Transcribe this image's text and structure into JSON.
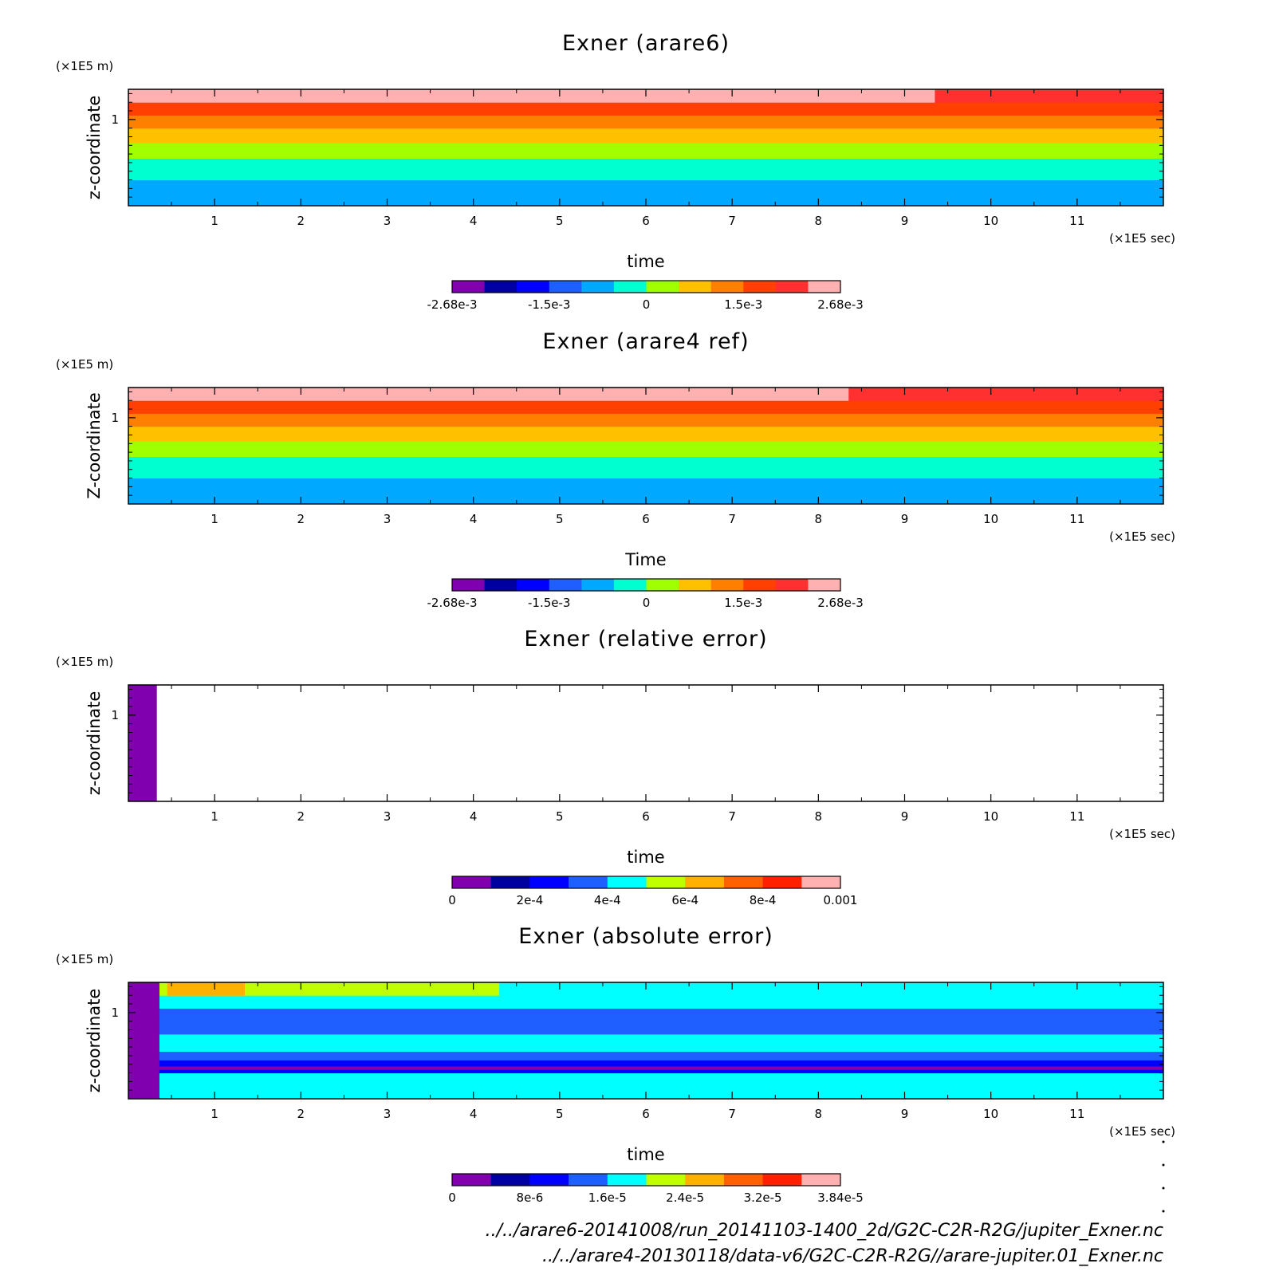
{
  "chart_data": [
    {
      "type": "heatmap",
      "title": "Exner (arare6)",
      "xlabel": "time",
      "ylabel": "z-coordinate",
      "x_unit": "(×1E5 sec)",
      "y_unit": "(×1E5 m)",
      "xlim": [
        0,
        12
      ],
      "ylim": [
        0,
        1.35
      ],
      "x_ticks": [
        "1",
        "2",
        "3",
        "4",
        "5",
        "6",
        "7",
        "8",
        "9",
        "10",
        "11"
      ],
      "y_ticks": [
        "1"
      ],
      "colorbar": {
        "levels": [
          -0.00268,
          0.00268
        ],
        "tick_labels": [
          "-2.68e-3",
          "-1.5e-3",
          "0",
          "1.5e-3",
          "2.68e-3"
        ],
        "colors": [
          "#8000b0",
          "#0000a0",
          "#0000ff",
          "#1f5fff",
          "#00a8ff",
          "#00ffd0",
          "#a0ff00",
          "#ffc000",
          "#ff8000",
          "#ff4000",
          "#ff3030",
          "#ffb0b0"
        ]
      },
      "field": {
        "layers": [
          {
            "z": [
              0.0,
              0.3
            ],
            "color": "#00a8ff"
          },
          {
            "z": [
              0.3,
              0.55
            ],
            "color": "#00ffd0"
          },
          {
            "z": [
              0.55,
              0.73
            ],
            "color": "#a0ff00"
          },
          {
            "z": [
              0.73,
              0.9
            ],
            "color": "#ffc000"
          },
          {
            "z": [
              0.9,
              1.05
            ],
            "color": "#ff8000"
          },
          {
            "z": [
              1.05,
              1.2
            ],
            "color": "#ff4000"
          },
          {
            "z": [
              1.2,
              1.35
            ],
            "color": "#ffb0b0",
            "switch_time": 9.35,
            "switch_color": "#ff3030"
          }
        ]
      }
    },
    {
      "type": "heatmap",
      "title": "Exner (arare4 ref)",
      "xlabel": "Time",
      "ylabel": "Z-coordinate",
      "x_unit": "(×1E5 sec)",
      "y_unit": "(×1E5 m)",
      "xlim": [
        0,
        12
      ],
      "ylim": [
        0,
        1.35
      ],
      "x_ticks": [
        "1",
        "2",
        "3",
        "4",
        "5",
        "6",
        "7",
        "8",
        "9",
        "10",
        "11"
      ],
      "y_ticks": [
        "1"
      ],
      "colorbar": {
        "levels": [
          -0.00268,
          0.00268
        ],
        "tick_labels": [
          "-2.68e-3",
          "-1.5e-3",
          "0",
          "1.5e-3",
          "2.68e-3"
        ],
        "colors": [
          "#8000b0",
          "#0000a0",
          "#0000ff",
          "#1f5fff",
          "#00a8ff",
          "#00ffd0",
          "#a0ff00",
          "#ffc000",
          "#ff8000",
          "#ff4000",
          "#ff3030",
          "#ffb0b0"
        ]
      },
      "field": {
        "layers": [
          {
            "z": [
              0.0,
              0.3
            ],
            "color": "#00a8ff"
          },
          {
            "z": [
              0.3,
              0.55
            ],
            "color": "#00ffd0"
          },
          {
            "z": [
              0.55,
              0.73
            ],
            "color": "#a0ff00"
          },
          {
            "z": [
              0.73,
              0.9
            ],
            "color": "#ffc000"
          },
          {
            "z": [
              0.9,
              1.05
            ],
            "color": "#ff8000"
          },
          {
            "z": [
              1.05,
              1.2
            ],
            "color": "#ff4000"
          },
          {
            "z": [
              1.2,
              1.35
            ],
            "color": "#ffb0b0",
            "switch_time": 8.35,
            "switch_color": "#ff3030"
          }
        ]
      }
    },
    {
      "type": "heatmap",
      "title": "Exner (relative error)",
      "xlabel": "time",
      "ylabel": "z-coordinate",
      "x_unit": "(×1E5 sec)",
      "y_unit": "(×1E5 m)",
      "xlim": [
        0,
        12
      ],
      "ylim": [
        0,
        1.35
      ],
      "x_ticks": [
        "1",
        "2",
        "3",
        "4",
        "5",
        "6",
        "7",
        "8",
        "9",
        "10",
        "11"
      ],
      "y_ticks": [
        "1"
      ],
      "colorbar": {
        "levels": [
          0,
          0.001
        ],
        "tick_labels": [
          "0",
          "2e-4",
          "4e-4",
          "6e-4",
          "8e-4",
          "0.001"
        ],
        "colors": [
          "#8000b0",
          "#0000a0",
          "#0000ff",
          "#1f5fff",
          "#00ffff",
          "#c0ff00",
          "#ffb000",
          "#ff6000",
          "#ff2000",
          "#ffb0b0"
        ]
      },
      "field": {
        "background": "#ffffff",
        "layers": [
          {
            "z": [
              0.0,
              1.35
            ],
            "t": [
              0,
              0.33
            ],
            "color": "#8000b0"
          }
        ]
      }
    },
    {
      "type": "heatmap",
      "title": "Exner (absolute error)",
      "xlabel": "time",
      "ylabel": "z-coordinate",
      "x_unit": "(×1E5 sec)",
      "y_unit": "(×1E5 m)",
      "xlim": [
        0,
        12
      ],
      "ylim": [
        0,
        1.35
      ],
      "x_ticks": [
        "1",
        "2",
        "3",
        "4",
        "5",
        "6",
        "7",
        "8",
        "9",
        "10",
        "11"
      ],
      "y_ticks": [
        "1"
      ],
      "colorbar": {
        "levels": [
          0,
          3.84e-05
        ],
        "tick_labels": [
          "0",
          "8e-6",
          "1.6e-5",
          "2.4e-5",
          "3.2e-5",
          "3.84e-5"
        ],
        "colors": [
          "#8000b0",
          "#0000a0",
          "#0000ff",
          "#1f5fff",
          "#00ffff",
          "#c0ff00",
          "#ffb000",
          "#ff6000",
          "#ff2000",
          "#ffb0b0"
        ]
      },
      "field": {
        "background": "#00ffff",
        "layers": [
          {
            "z": [
              0.0,
              0.3
            ],
            "color": "#00ffff"
          },
          {
            "z": [
              0.3,
              0.34
            ],
            "color": "#0000ff"
          },
          {
            "z": [
              0.34,
              0.38
            ],
            "color": "#8000b0"
          },
          {
            "z": [
              0.38,
              0.45
            ],
            "color": "#0000ff"
          },
          {
            "z": [
              0.45,
              0.55
            ],
            "color": "#1f5fff"
          },
          {
            "z": [
              0.55,
              0.75
            ],
            "color": "#00ffff"
          },
          {
            "z": [
              0.75,
              0.9
            ],
            "color": "#1f5fff"
          },
          {
            "z": [
              0.9,
              1.05
            ],
            "color": "#1f5fff"
          },
          {
            "z": [
              1.05,
              1.2
            ],
            "color": "#00ffff"
          },
          {
            "z": [
              1.2,
              1.35
            ],
            "t": [
              0.3,
              4.3
            ],
            "color": "#c0ff00"
          },
          {
            "z": [
              1.2,
              1.35
            ],
            "t": [
              0.45,
              1.35
            ],
            "color": "#ffb000"
          },
          {
            "z": [
              0.0,
              1.35
            ],
            "t": [
              0,
              0.36
            ],
            "color": "#8000b0"
          }
        ]
      }
    }
  ],
  "footer": {
    "lines": [
      "../../arare6-20141008/run_20141103-1400_2d/G2C-C2R-R2G/jupiter_Exner.nc",
      "../../arare4-20130118/data-v6/G2C-C2R-R2G//arare-jupiter.01_Exner.nc"
    ]
  }
}
